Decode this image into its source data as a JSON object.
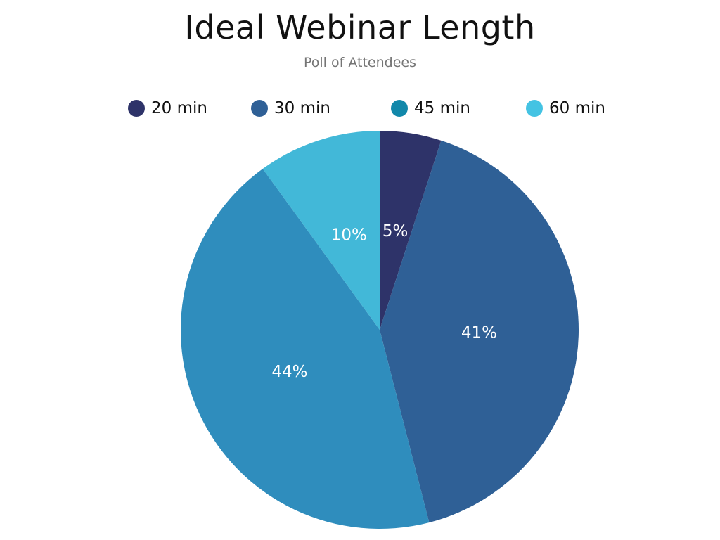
{
  "chart_data": {
    "type": "pie",
    "title": "Ideal Webinar Length",
    "subtitle": "Poll of Attendees",
    "legend_position": "top",
    "categories": [
      "20 min",
      "30 min",
      "45 min",
      "60 min"
    ],
    "values": [
      5,
      41,
      44,
      10
    ],
    "data_labels": [
      "5%",
      "41%",
      "44%",
      "10%"
    ],
    "colors": [
      "#2e3369",
      "#2f6096",
      "#2f8dbd",
      "#42b8d8"
    ],
    "legend_colors": [
      "#2e3369",
      "#2f6096",
      "#1288aa",
      "#44c3e3"
    ],
    "label_color": "#ffffff"
  }
}
